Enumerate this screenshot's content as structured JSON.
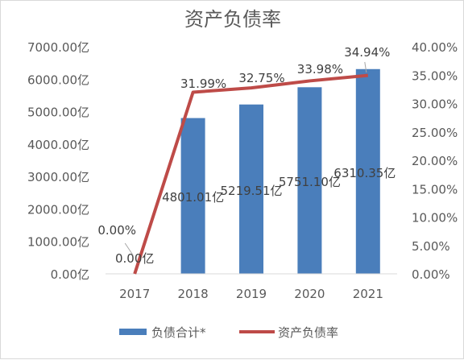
{
  "chart_data": {
    "type": "bar",
    "title": "资产负债率",
    "categories": [
      "2017",
      "2018",
      "2019",
      "2020",
      "2021"
    ],
    "series": [
      {
        "name": "负债合计*",
        "type": "bar",
        "axis": "left",
        "color": "#4a7ebb",
        "values": [
          0.0,
          4801.01,
          5219.51,
          5751.1,
          6310.35
        ],
        "labels": [
          "0.00亿",
          "4801.01亿",
          "5219.51亿",
          "5751.10亿",
          "6310.35亿"
        ]
      },
      {
        "name": "资产负债率",
        "type": "line",
        "axis": "right",
        "color": "#be4b48",
        "values": [
          0.0,
          31.99,
          32.75,
          33.98,
          34.94
        ],
        "labels": [
          "0.00%",
          "31.99%",
          "32.75%",
          "33.98%",
          "34.94%"
        ]
      }
    ],
    "y_left": {
      "lim": [
        0,
        7000
      ],
      "ticks": [
        "0.00亿",
        "1000.00亿",
        "2000.00亿",
        "3000.00亿",
        "4000.00亿",
        "5000.00亿",
        "6000.00亿",
        "7000.00亿"
      ]
    },
    "y_right": {
      "lim": [
        0,
        40
      ],
      "ticks": [
        "0.00%",
        "5.00%",
        "10.00%",
        "15.00%",
        "20.00%",
        "25.00%",
        "30.00%",
        "35.00%",
        "40.00%"
      ]
    },
    "grid": false,
    "legend_position": "bottom"
  }
}
